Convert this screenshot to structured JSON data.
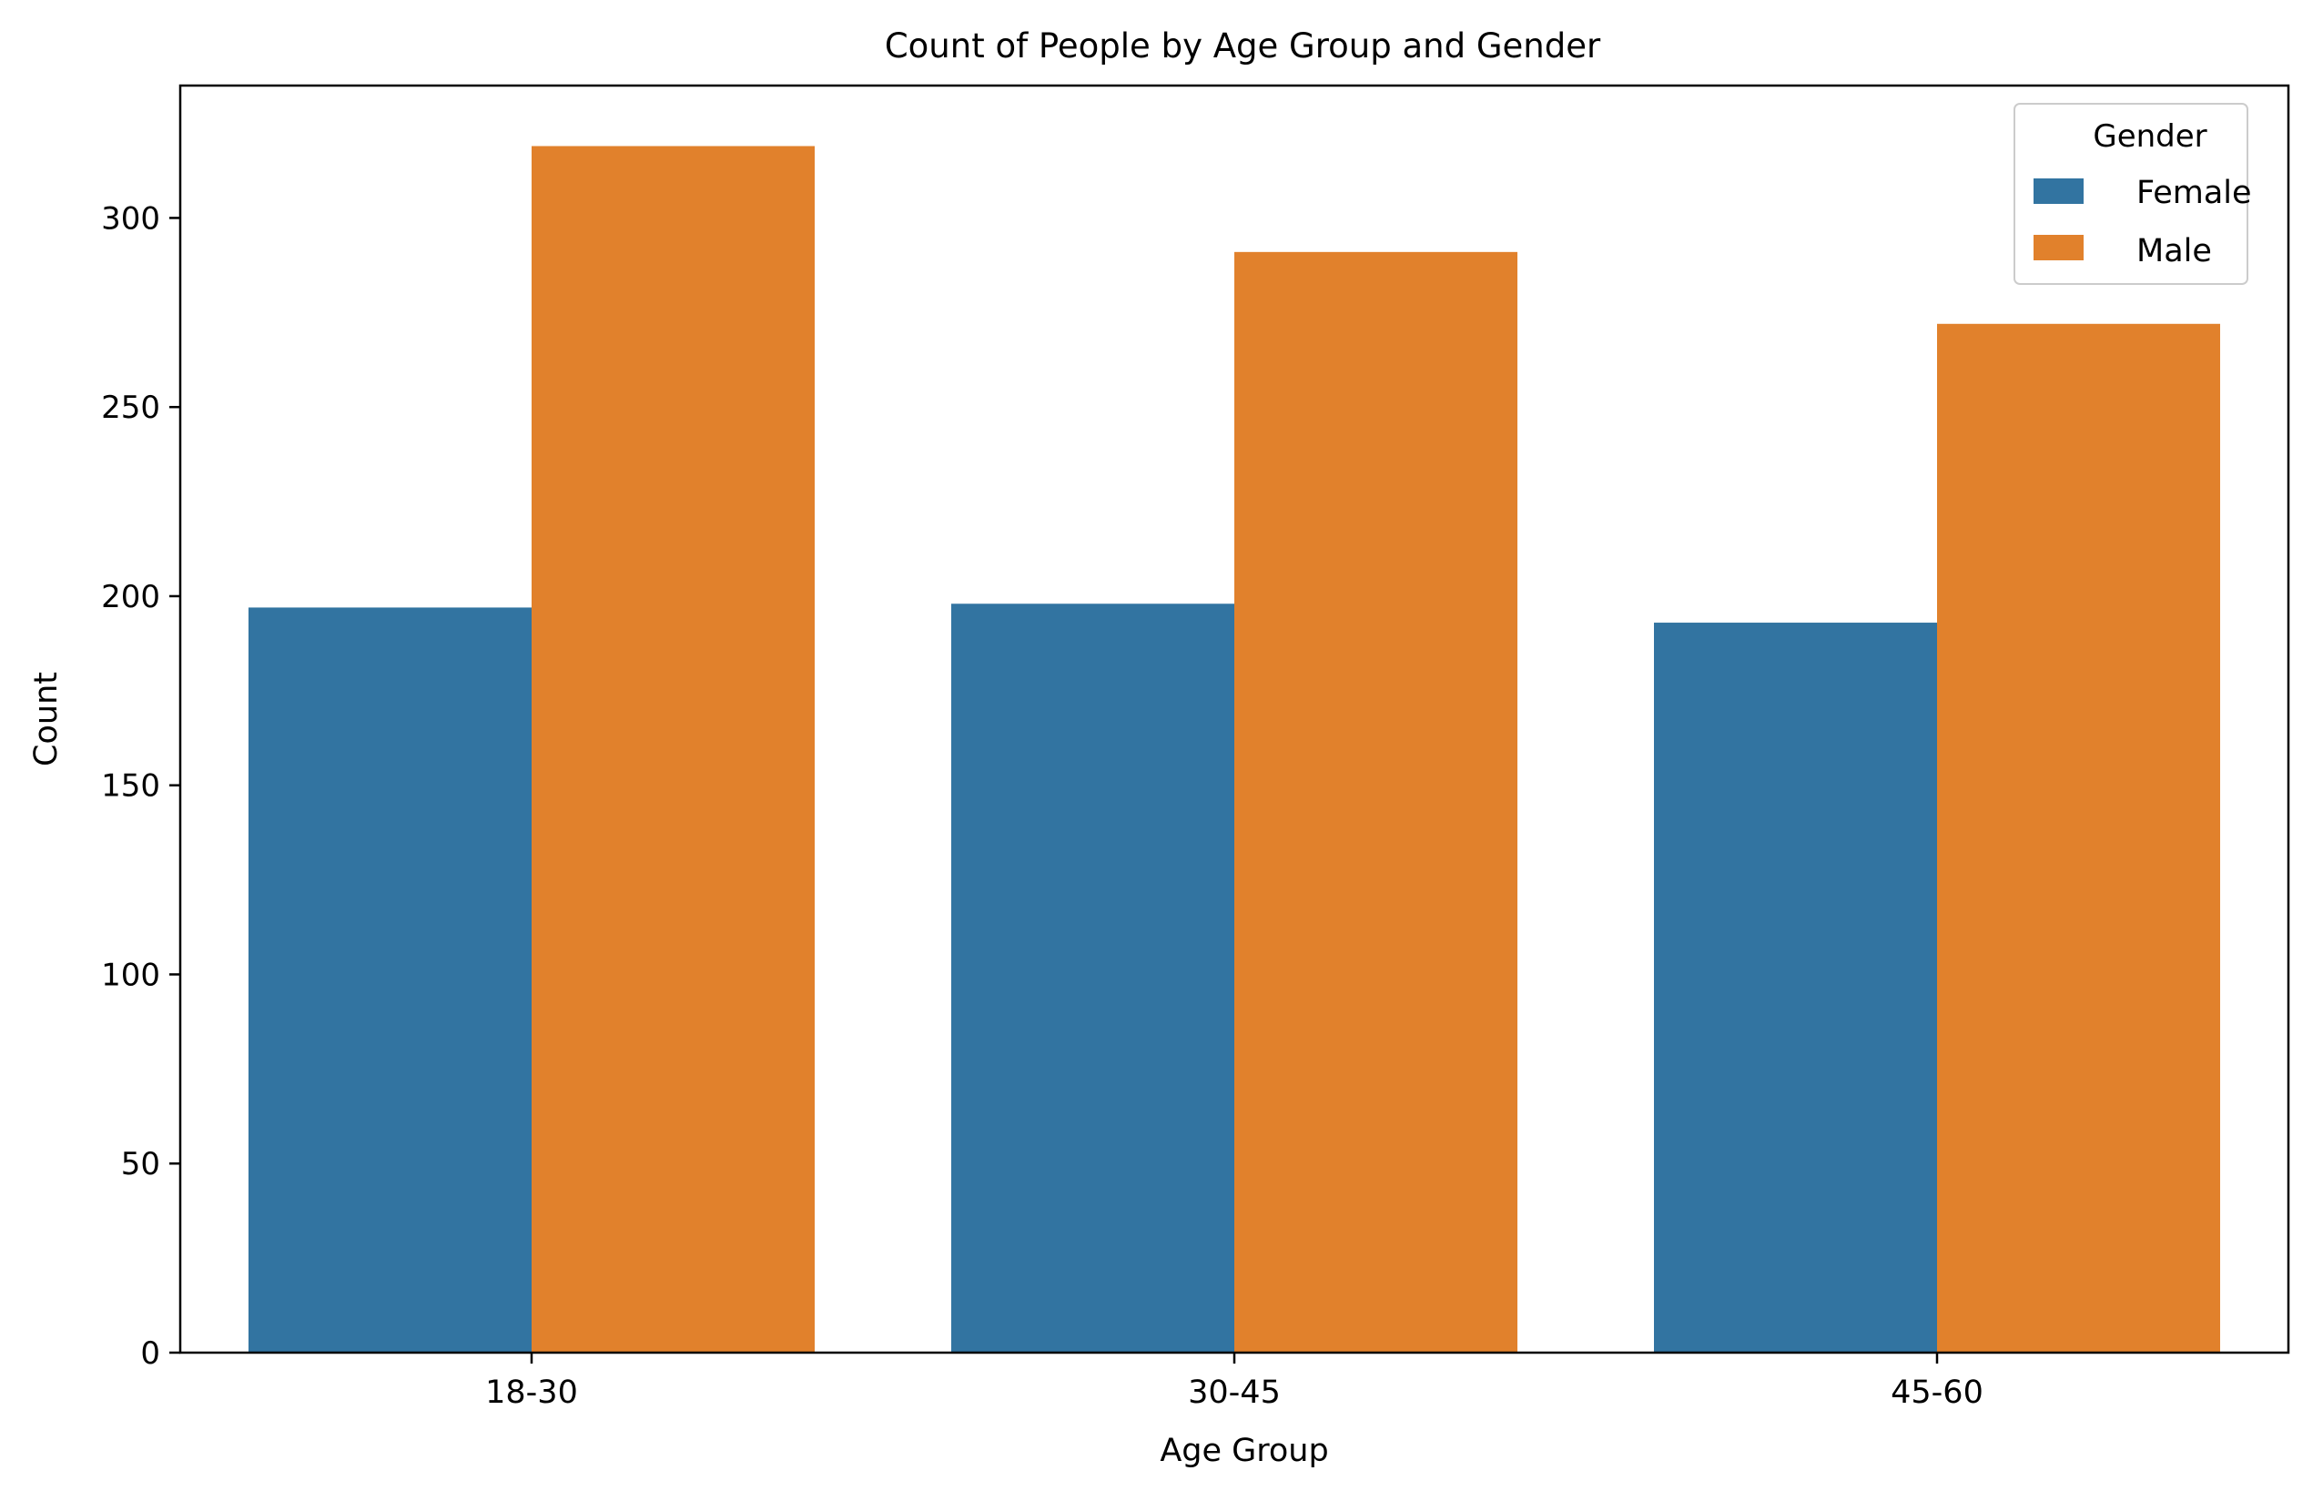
{
  "chart_data": {
    "type": "bar",
    "title": "Count of People by Age Group and Gender",
    "xlabel": "Age Group",
    "ylabel": "Count",
    "categories": [
      "18-30",
      "30-45",
      "45-60"
    ],
    "series": [
      {
        "name": "Female",
        "color": "#3274a1",
        "values": [
          197,
          198,
          193
        ]
      },
      {
        "name": "Male",
        "color": "#e1812c",
        "values": [
          319,
          291,
          272
        ]
      }
    ],
    "ylim": [
      0,
      335
    ],
    "yticks": [
      0,
      50,
      100,
      150,
      200,
      250,
      300
    ],
    "grid": false,
    "legend": {
      "title": "Gender",
      "placement": "top-right"
    }
  }
}
